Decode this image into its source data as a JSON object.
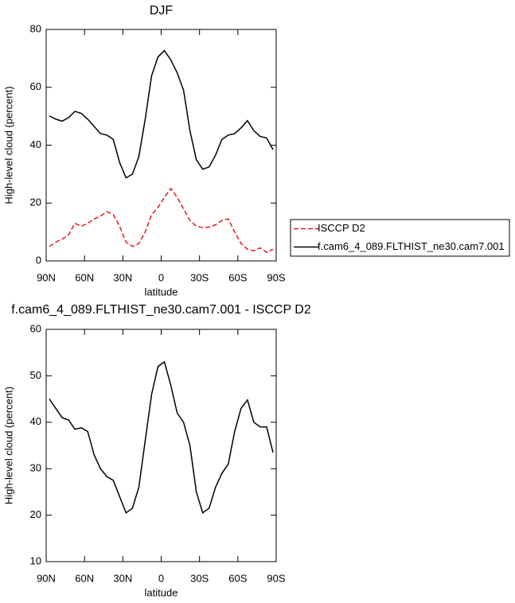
{
  "chart_data": [
    {
      "type": "line",
      "title": "DJF",
      "xlabel": "latitude",
      "ylabel": "High-level cloud (percent)",
      "xlim": [
        90,
        -90
      ],
      "ylim": [
        0,
        80
      ],
      "xticks": [
        {
          "value": 90,
          "label": "90N"
        },
        {
          "value": 60,
          "label": "60N"
        },
        {
          "value": 30,
          "label": "30N"
        },
        0,
        {
          "value": -30,
          "label": "30S"
        },
        {
          "value": -60,
          "label": "60S"
        },
        {
          "value": -90,
          "label": "90S"
        }
      ],
      "yticks": [
        0,
        20,
        40,
        60,
        80
      ],
      "legend": "right",
      "x": [
        87.5,
        82.5,
        77.5,
        72.5,
        67.5,
        62.5,
        57.5,
        52.5,
        47.5,
        42.5,
        37.5,
        32.5,
        27.5,
        22.5,
        17.5,
        12.5,
        7.5,
        2.5,
        -2.5,
        -7.5,
        -12.5,
        -17.5,
        -22.5,
        -27.5,
        -32.5,
        -37.5,
        -42.5,
        -47.5,
        -52.5,
        -57.5,
        -62.5,
        -67.5,
        -72.5,
        -77.5,
        -82.5,
        -87.5
      ],
      "series": [
        {
          "name": "ISCCP D2",
          "color": "#e41a1c",
          "style": "dashed",
          "values": [
            5,
            6.5,
            7.5,
            9,
            13,
            12,
            13,
            14.5,
            15.5,
            17,
            16,
            12,
            6.5,
            5,
            6,
            10,
            16,
            18.5,
            22,
            25,
            22,
            18,
            14,
            12,
            11.5,
            11.7,
            12.5,
            14,
            14.5,
            10,
            6,
            4,
            3.5,
            4.5,
            3,
            4
          ]
        },
        {
          "name": "f.cam6_4_089.FLTHIST_ne30.cam7.001",
          "color": "#000000",
          "style": "solid",
          "values": [
            50.1,
            49,
            48.3,
            49.5,
            51.7,
            51,
            49,
            46.5,
            44,
            43.5,
            42,
            34,
            28.7,
            30,
            36,
            49,
            64,
            70.5,
            72.7,
            69.5,
            65,
            59,
            45,
            35,
            31.7,
            32.5,
            36.5,
            42,
            43.5,
            44,
            46,
            48.5,
            45,
            43,
            42.5,
            38.5
          ]
        }
      ]
    },
    {
      "type": "line",
      "title": "f.cam6_4_089.FLTHIST_ne30.cam7.001 - ISCCP D2",
      "xlabel": "latitude",
      "ylabel": "High-level cloud (percent)",
      "xlim": [
        90,
        -90
      ],
      "ylim": [
        10,
        60
      ],
      "xticks": [
        {
          "value": 90,
          "label": "90N"
        },
        {
          "value": 60,
          "label": "60N"
        },
        {
          "value": 30,
          "label": "30N"
        },
        0,
        {
          "value": -30,
          "label": "30S"
        },
        {
          "value": -60,
          "label": "60S"
        },
        {
          "value": -90,
          "label": "90S"
        }
      ],
      "yticks": [
        10,
        20,
        30,
        40,
        50,
        60
      ],
      "x": [
        87.5,
        82.5,
        77.5,
        72.5,
        67.5,
        62.5,
        57.5,
        52.5,
        47.5,
        42.5,
        37.5,
        32.5,
        27.5,
        22.5,
        17.5,
        12.5,
        7.5,
        2.5,
        -2.5,
        -7.5,
        -12.5,
        -17.5,
        -22.5,
        -27.5,
        -32.5,
        -37.5,
        -42.5,
        -47.5,
        -52.5,
        -57.5,
        -62.5,
        -67.5,
        -72.5,
        -77.5,
        -82.5,
        -87.5
      ],
      "series": [
        {
          "color": "#000000",
          "style": "solid",
          "values": [
            45,
            43,
            41,
            40.5,
            38.5,
            38.8,
            38,
            33,
            30,
            28.3,
            27.5,
            24,
            20.5,
            21.5,
            26,
            36,
            46,
            52,
            53,
            48,
            42,
            40,
            35,
            25,
            20.5,
            21.5,
            26,
            29,
            31,
            38,
            43,
            44.8,
            40,
            39,
            39,
            33.5
          ]
        }
      ]
    }
  ]
}
